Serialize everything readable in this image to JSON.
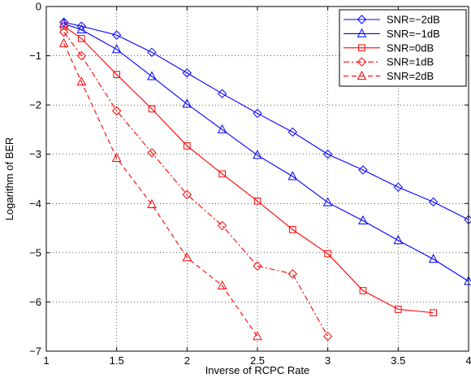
{
  "chart_data": {
    "type": "line",
    "title": "",
    "xlabel": "Inverse of RCPC Rate",
    "ylabel": "Logarithm of BER",
    "xlim": [
      1,
      4
    ],
    "ylim": [
      -7,
      0
    ],
    "xticks": [
      1,
      1.5,
      2,
      2.5,
      3,
      3.5,
      4
    ],
    "yticks": [
      0,
      -1,
      -2,
      -3,
      -4,
      -5,
      -6,
      -7
    ],
    "xtick_labels": [
      "1",
      "1.5",
      "2",
      "2.5",
      "3",
      "3.5",
      "4"
    ],
    "ytick_labels": [
      "0",
      "−1",
      "−2",
      "−3",
      "−4",
      "−5",
      "−6",
      "−7"
    ],
    "grid": true,
    "legend_position": "top-right",
    "series": [
      {
        "name": "SNR=−2dB",
        "color": "#0000ff",
        "marker": "diamond",
        "dash": "solid",
        "x": [
          1.125,
          1.25,
          1.5,
          1.75,
          2,
          2.25,
          2.5,
          2.75,
          3,
          3.25,
          3.5,
          3.75,
          4
        ],
        "y": [
          -0.32,
          -0.4,
          -0.58,
          -0.93,
          -1.35,
          -1.77,
          -2.17,
          -2.55,
          -3.0,
          -3.32,
          -3.67,
          -3.97,
          -4.33
        ]
      },
      {
        "name": "SNR=−1dB",
        "color": "#0000ff",
        "marker": "triangle",
        "dash": "solid",
        "x": [
          1.125,
          1.25,
          1.5,
          1.75,
          2,
          2.25,
          2.5,
          2.75,
          3,
          3.25,
          3.5,
          3.75,
          4
        ],
        "y": [
          -0.35,
          -0.47,
          -0.87,
          -1.42,
          -1.98,
          -2.5,
          -3.02,
          -3.45,
          -3.98,
          -4.35,
          -4.75,
          -5.13,
          -5.58
        ]
      },
      {
        "name": "SNR=0dB",
        "color": "#ff0000",
        "marker": "square",
        "dash": "solid",
        "x": [
          1.125,
          1.25,
          1.5,
          1.75,
          2,
          2.25,
          2.5,
          2.75,
          3,
          3.25,
          3.5,
          3.75
        ],
        "y": [
          -0.4,
          -0.65,
          -1.38,
          -2.08,
          -2.83,
          -3.4,
          -3.95,
          -4.53,
          -5.02,
          -5.77,
          -6.15,
          -6.22
        ]
      },
      {
        "name": "SNR=1dB",
        "color": "#ff0000",
        "marker": "diamond",
        "dash": "dashdot",
        "x": [
          1.125,
          1.25,
          1.5,
          1.75,
          2,
          2.25,
          2.5,
          2.75,
          3
        ],
        "y": [
          -0.52,
          -1.0,
          -2.12,
          -2.97,
          -3.82,
          -4.45,
          -5.27,
          -5.43,
          -6.7
        ]
      },
      {
        "name": "SNR=2dB",
        "color": "#ff0000",
        "marker": "triangle",
        "dash": "dashed",
        "x": [
          1.125,
          1.25,
          1.5,
          1.75,
          2,
          2.25,
          2.5
        ],
        "y": [
          -0.75,
          -1.53,
          -3.08,
          -4.02,
          -5.1,
          -5.67,
          -6.7
        ]
      }
    ]
  }
}
